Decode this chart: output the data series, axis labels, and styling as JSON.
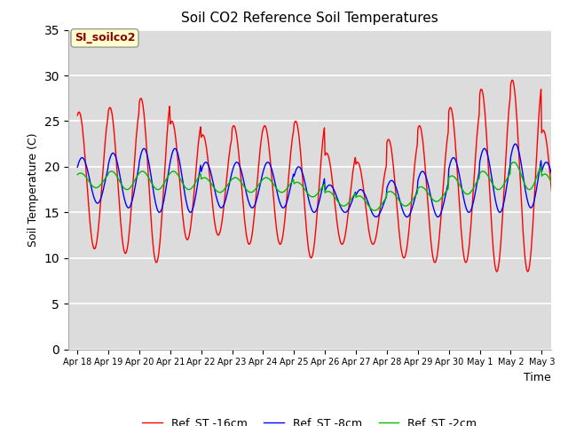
{
  "title": "Soil CO2 Reference Soil Temperatures",
  "ylabel": "Soil Temperature (C)",
  "xlabel": "Time",
  "ylim": [
    0,
    35
  ],
  "yticks": [
    0,
    5,
    10,
    15,
    20,
    25,
    30,
    35
  ],
  "background_color": "#dcdcdc",
  "outer_background": "#ffffff",
  "label_box_text": "SI_soilco2",
  "label_box_bg": "#ffffcc",
  "label_box_text_color": "#8b0000",
  "legend": [
    "Ref_ST -16cm",
    "Ref_ST -8cm",
    "Ref_ST -2cm"
  ],
  "line_colors": [
    "#ff0000",
    "#0000ff",
    "#00bb00"
  ],
  "x_tick_labels": [
    "Apr 18",
    "Apr 19",
    "Apr 20",
    "Apr 21",
    "Apr 22",
    "Apr 23",
    "Apr 24",
    "Apr 25",
    "Apr 26",
    "Apr 27",
    "Apr 28",
    "Apr 29",
    "Apr 30",
    "May 1",
    "May 2",
    "May 3"
  ],
  "n_days": 16,
  "red_base": [
    18.5,
    18.5,
    18.5,
    18.5,
    18.0,
    18.0,
    18.0,
    17.5,
    16.5,
    16.0,
    16.5,
    17.0,
    18.0,
    18.5,
    19.0,
    18.0
  ],
  "red_amp": [
    7.5,
    8.0,
    9.0,
    6.5,
    5.5,
    6.5,
    6.5,
    7.5,
    5.0,
    4.5,
    6.5,
    7.5,
    8.5,
    10.0,
    10.5,
    6.0
  ],
  "blue_base": [
    18.5,
    18.5,
    18.5,
    18.5,
    18.0,
    18.0,
    18.0,
    17.5,
    16.5,
    16.0,
    16.5,
    17.0,
    18.0,
    18.5,
    19.0,
    18.0
  ],
  "blue_amp": [
    2.5,
    3.0,
    3.5,
    3.5,
    2.5,
    2.5,
    2.5,
    2.5,
    1.5,
    1.5,
    2.0,
    2.5,
    3.0,
    3.5,
    3.5,
    2.5
  ],
  "green_base": [
    18.5,
    18.5,
    18.5,
    18.5,
    18.0,
    18.0,
    18.0,
    17.5,
    16.5,
    16.0,
    16.5,
    17.0,
    18.0,
    18.5,
    19.0,
    18.0
  ],
  "green_amp": [
    0.8,
    1.0,
    1.0,
    1.0,
    0.8,
    0.8,
    0.8,
    0.8,
    0.8,
    0.8,
    0.8,
    0.8,
    1.0,
    1.0,
    1.5,
    1.2
  ],
  "points_per_day": 48
}
